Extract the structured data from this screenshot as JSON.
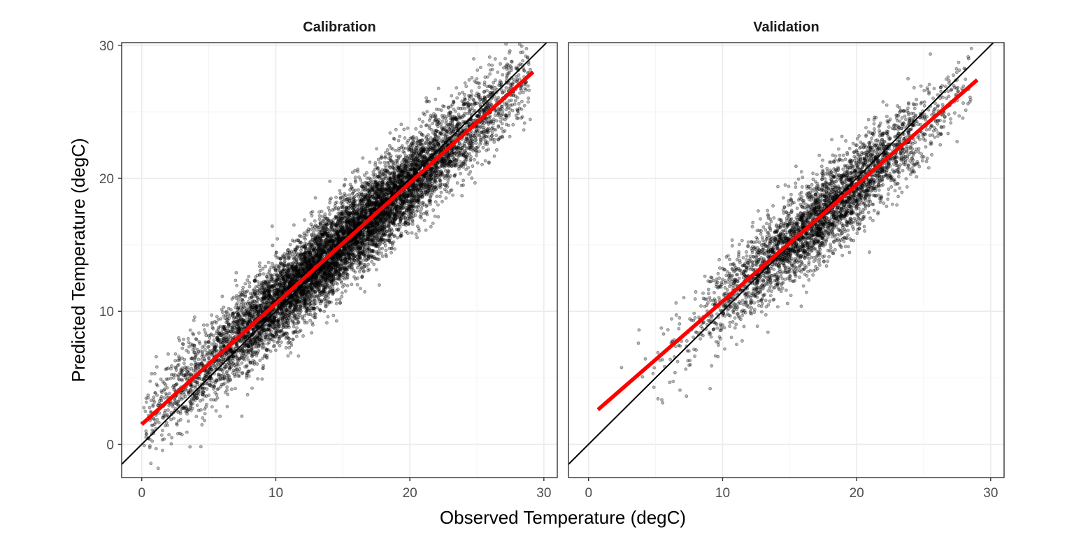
{
  "chart_data": {
    "type": "scatter",
    "xlabel": "Observed Temperature (degC)",
    "ylabel": "Predicted Temperature (degC)",
    "xlim": [
      -1.5,
      31
    ],
    "ylim": [
      -2.5,
      30.2
    ],
    "x_ticks": [
      0,
      10,
      20,
      30
    ],
    "y_ticks": [
      0,
      10,
      20,
      30
    ],
    "x_tick_labels": [
      "0",
      "10",
      "20",
      "30"
    ],
    "y_tick_labels": [
      "0",
      "10",
      "20",
      "30"
    ],
    "grid": true,
    "reference_line": {
      "type": "identity",
      "slope": 1,
      "intercept": 0,
      "color": "#000000"
    },
    "point_color": "#000000",
    "point_opacity": 0.3,
    "fit_color": "#ff0000",
    "panels": [
      {
        "title": "Calibration",
        "n_points": 9000,
        "x_range": [
          0,
          29
        ],
        "x_center": 15,
        "x_spread": 6.5,
        "residual_sd": 1.6,
        "fit": {
          "x": [
            0,
            29.2
          ],
          "y": [
            1.5,
            28.0
          ]
        }
      },
      {
        "title": "Validation",
        "n_points": 3500,
        "x_range": [
          0.7,
          29
        ],
        "x_center": 17.5,
        "x_spread": 4.5,
        "residual_sd": 1.6,
        "fit": {
          "x": [
            0.7,
            29
          ],
          "y": [
            2.6,
            27.4
          ]
        }
      }
    ]
  }
}
